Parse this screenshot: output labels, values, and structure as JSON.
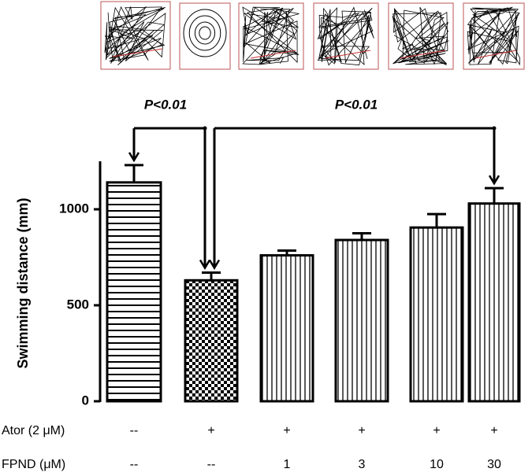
{
  "chart_data": {
    "type": "bar",
    "y_label": "Swimming distance (mm)",
    "values": [
      1140,
      630,
      760,
      840,
      905,
      1030
    ],
    "errors": [
      90,
      40,
      25,
      35,
      70,
      80
    ],
    "patterns": [
      "horizontal",
      "checker",
      "vertical",
      "vertical",
      "vertical",
      "vertical"
    ],
    "color": "#000000",
    "ylim": [
      0,
      1250
    ],
    "yticks": [
      0,
      500,
      1000
    ],
    "rows": [
      {
        "label": "Ator (2 μM)",
        "values": [
          "--",
          "+",
          "+",
          "+",
          "+",
          "+"
        ]
      },
      {
        "label": "FPND (μM)",
        "values": [
          "--",
          "--",
          "1",
          "3",
          "10",
          "30"
        ]
      }
    ],
    "annotations": [
      {
        "text": "P<0.01",
        "from": 0,
        "to": 1
      },
      {
        "text": "P<0.01",
        "from": 1,
        "to": 5
      }
    ]
  }
}
